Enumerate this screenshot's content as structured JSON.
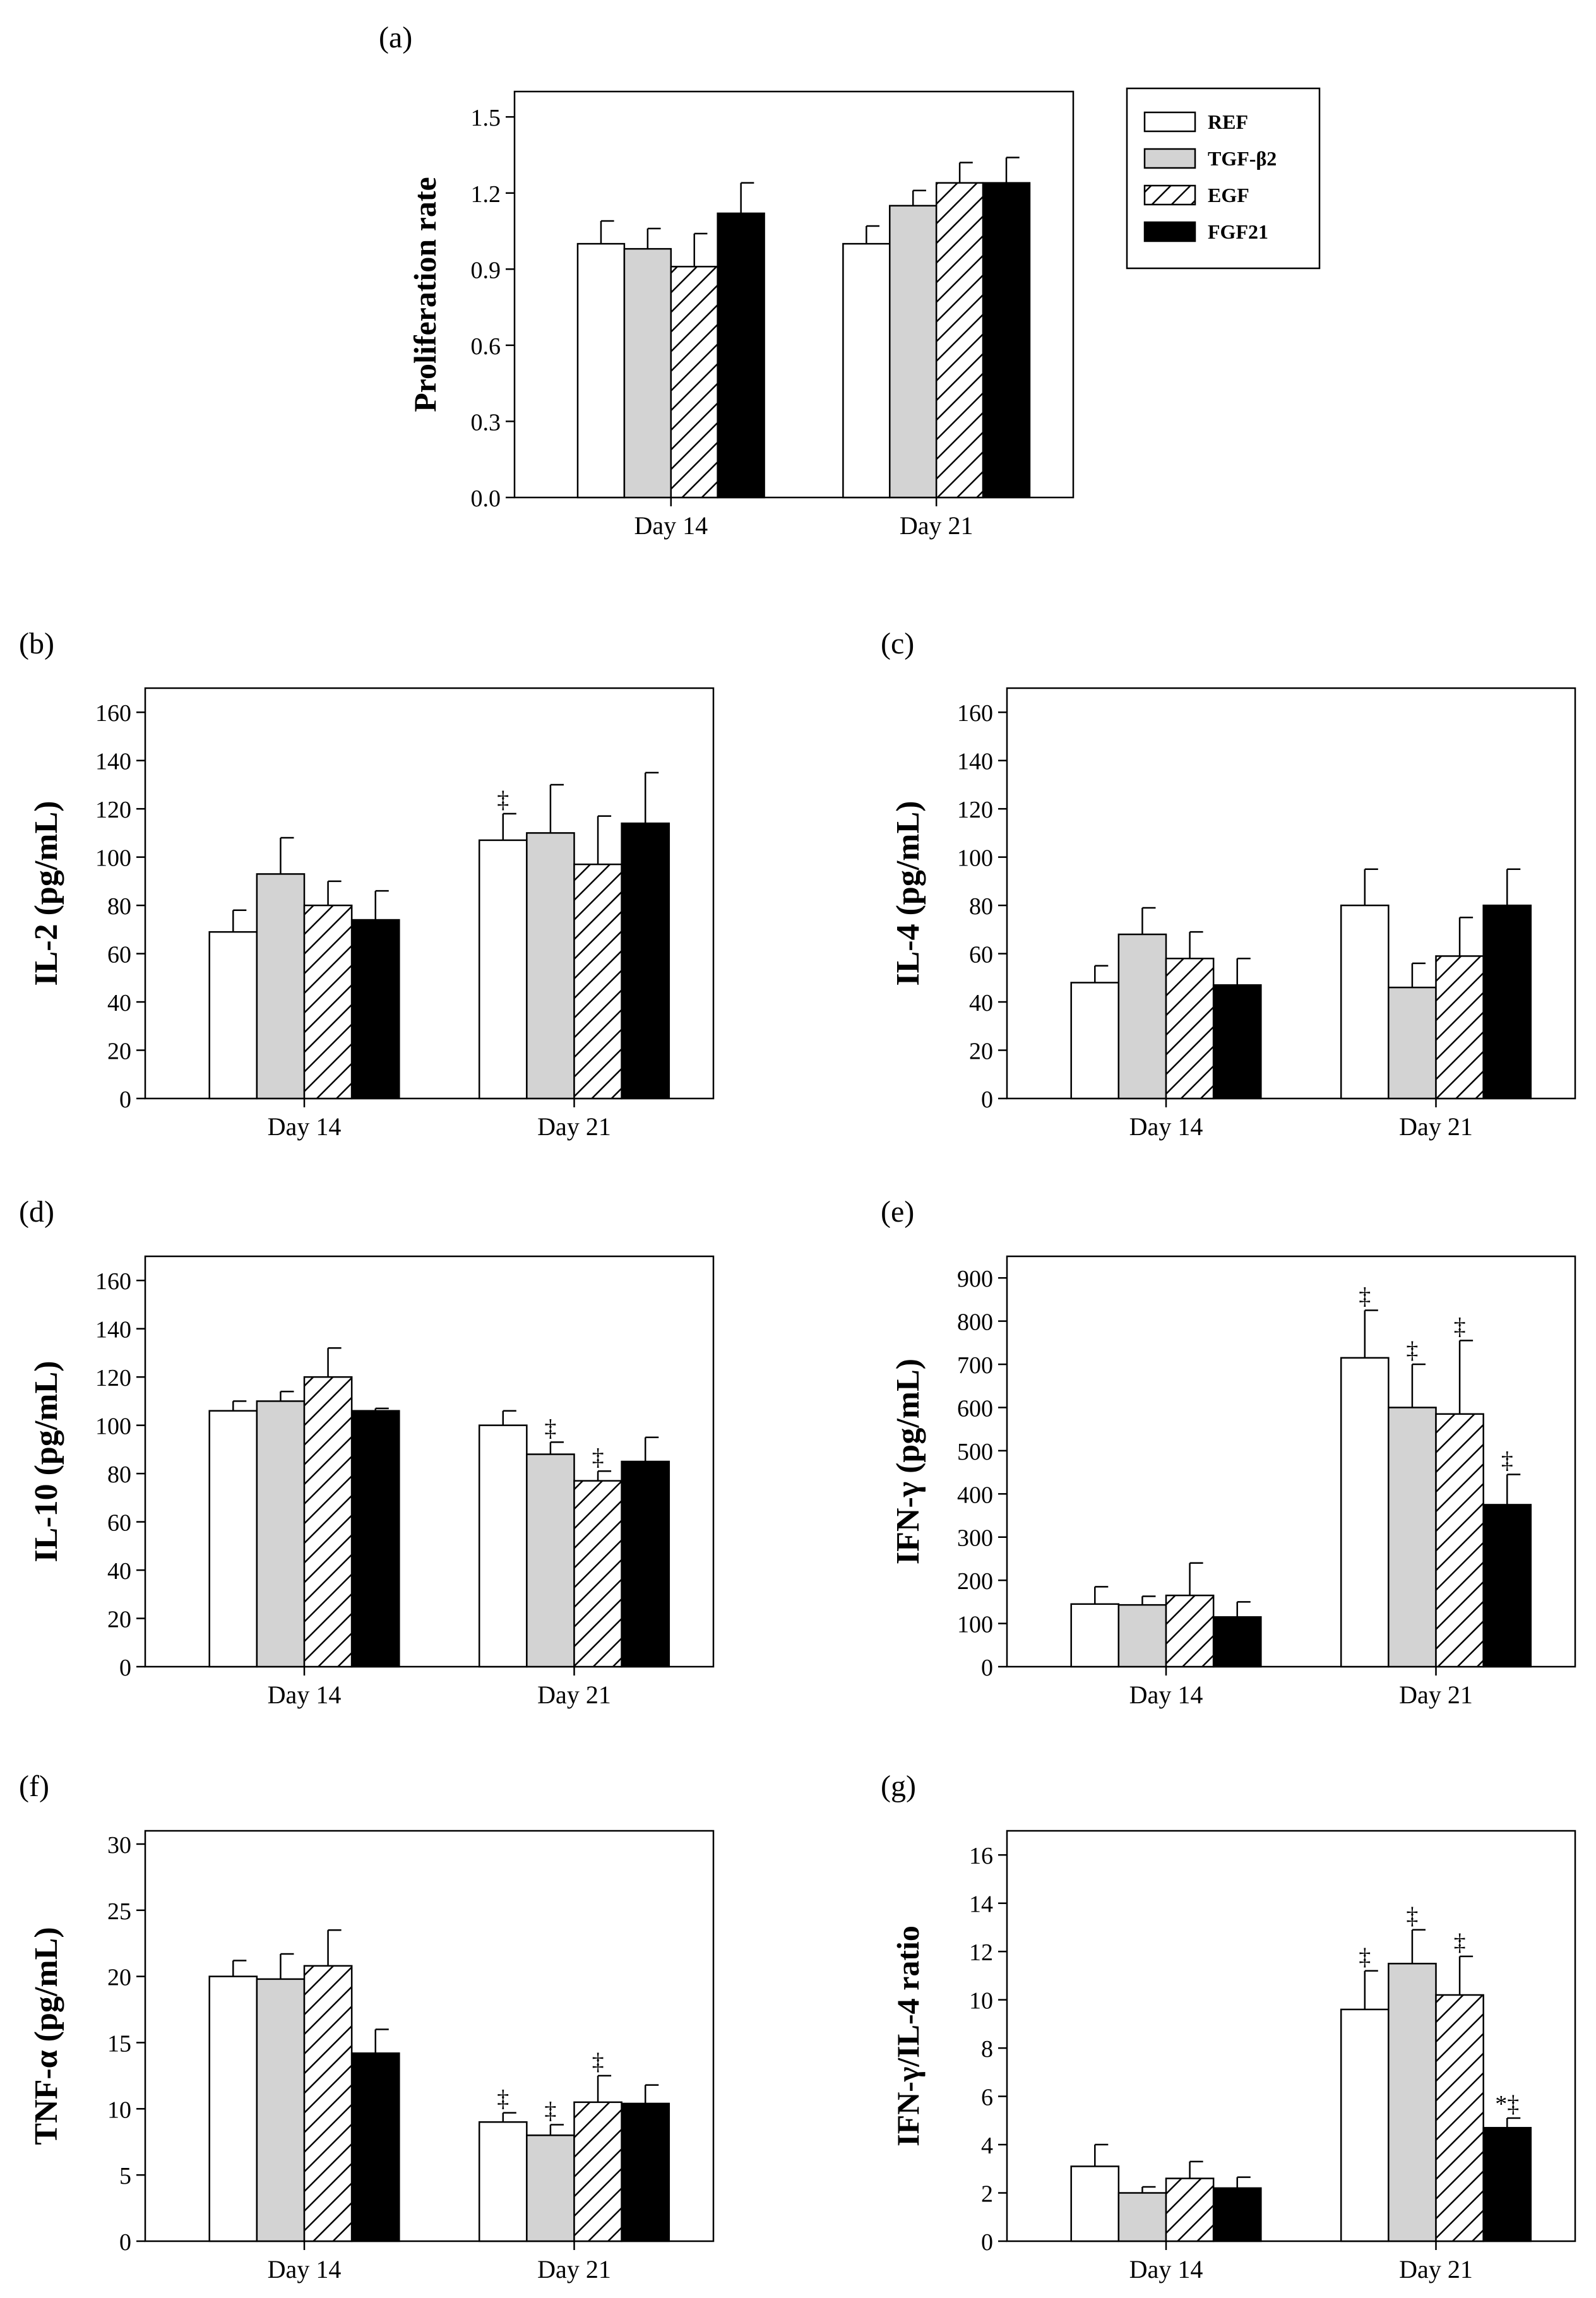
{
  "chart_data": [
    {
      "id": "a",
      "panel_label": "(a)",
      "type": "bar",
      "title": "",
      "ylabel": "Proliferation rate",
      "ylabel_weight": "bold",
      "categories": [
        "Day 14",
        "Day 21"
      ],
      "ylim": [
        0,
        1.6
      ],
      "yticks": [
        0,
        0.3,
        0.6,
        0.9,
        1.2,
        1.5
      ],
      "ytick_labels": [
        "0.0",
        "0.3",
        "0.6",
        "0.9",
        "1.2",
        "1.5"
      ],
      "series": [
        {
          "name": "REF",
          "values": [
            1.0,
            1.0
          ],
          "errors": [
            0.09,
            0.07
          ],
          "marks": [
            "",
            ""
          ]
        },
        {
          "name": "TGF-β2",
          "values": [
            0.98,
            1.15
          ],
          "errors": [
            0.08,
            0.06
          ],
          "marks": [
            "",
            ""
          ]
        },
        {
          "name": "EGF",
          "values": [
            0.91,
            1.24
          ],
          "errors": [
            0.13,
            0.08
          ],
          "marks": [
            "",
            ""
          ]
        },
        {
          "name": "FGF21",
          "values": [
            1.12,
            1.24
          ],
          "errors": [
            0.12,
            0.1
          ],
          "marks": [
            "",
            ""
          ]
        }
      ]
    },
    {
      "id": "b",
      "panel_label": "(b)",
      "type": "bar",
      "title": "",
      "ylabel": "IL-2 (pg/mL)",
      "ylabel_weight": "mixed",
      "categories": [
        "Day 14",
        "Day 21"
      ],
      "ylim": [
        0,
        170
      ],
      "yticks": [
        0,
        20,
        40,
        60,
        80,
        100,
        120,
        140,
        160
      ],
      "ytick_labels": [
        "0",
        "20",
        "40",
        "60",
        "80",
        "100",
        "120",
        "140",
        "160"
      ],
      "series": [
        {
          "name": "REF",
          "values": [
            69,
            107
          ],
          "errors": [
            9,
            11
          ],
          "marks": [
            "",
            "‡"
          ]
        },
        {
          "name": "TGF-β2",
          "values": [
            93,
            110
          ],
          "errors": [
            15,
            20
          ],
          "marks": [
            "",
            ""
          ]
        },
        {
          "name": "EGF",
          "values": [
            80,
            97
          ],
          "errors": [
            10,
            20
          ],
          "marks": [
            "",
            ""
          ]
        },
        {
          "name": "FGF21",
          "values": [
            74,
            114
          ],
          "errors": [
            12,
            21
          ],
          "marks": [
            "",
            ""
          ]
        }
      ]
    },
    {
      "id": "c",
      "panel_label": "(c)",
      "type": "bar",
      "title": "",
      "ylabel": "IL-4 (pg/mL)",
      "ylabel_weight": "mixed",
      "categories": [
        "Day 14",
        "Day 21"
      ],
      "ylim": [
        0,
        170
      ],
      "yticks": [
        0,
        20,
        40,
        60,
        80,
        100,
        120,
        140,
        160
      ],
      "ytick_labels": [
        "0",
        "20",
        "40",
        "60",
        "80",
        "100",
        "120",
        "140",
        "160"
      ],
      "series": [
        {
          "name": "REF",
          "values": [
            48,
            80
          ],
          "errors": [
            7,
            15
          ],
          "marks": [
            "",
            ""
          ]
        },
        {
          "name": "TGF-β2",
          "values": [
            68,
            46
          ],
          "errors": [
            11,
            10
          ],
          "marks": [
            "",
            ""
          ]
        },
        {
          "name": "EGF",
          "values": [
            58,
            59
          ],
          "errors": [
            11,
            16
          ],
          "marks": [
            "",
            ""
          ]
        },
        {
          "name": "FGF21",
          "values": [
            47,
            80
          ],
          "errors": [
            11,
            15
          ],
          "marks": [
            "",
            ""
          ]
        }
      ]
    },
    {
      "id": "d",
      "panel_label": "(d)",
      "type": "bar",
      "title": "",
      "ylabel": "IL-10 (pg/mL)",
      "ylabel_weight": "mixed",
      "categories": [
        "Day 14",
        "Day 21"
      ],
      "ylim": [
        0,
        170
      ],
      "yticks": [
        0,
        20,
        40,
        60,
        80,
        100,
        120,
        140,
        160
      ],
      "ytick_labels": [
        "0",
        "20",
        "40",
        "60",
        "80",
        "100",
        "120",
        "140",
        "160"
      ],
      "series": [
        {
          "name": "REF",
          "values": [
            106,
            100
          ],
          "errors": [
            4,
            6
          ],
          "marks": [
            "",
            ""
          ]
        },
        {
          "name": "TGF-β2",
          "values": [
            110,
            88
          ],
          "errors": [
            4,
            5
          ],
          "marks": [
            "",
            "‡"
          ]
        },
        {
          "name": "EGF",
          "values": [
            120,
            77
          ],
          "errors": [
            12,
            4
          ],
          "marks": [
            "",
            "‡"
          ]
        },
        {
          "name": "FGF21",
          "values": [
            106,
            85
          ],
          "errors": [
            1,
            10
          ],
          "marks": [
            "",
            ""
          ]
        }
      ]
    },
    {
      "id": "e",
      "panel_label": "(e)",
      "type": "bar",
      "title": "",
      "ylabel": "IFN-γ (pg/mL)",
      "ylabel_weight": "mixed",
      "categories": [
        "Day 14",
        "Day 21"
      ],
      "ylim": [
        0,
        950
      ],
      "yticks": [
        0,
        100,
        200,
        300,
        400,
        500,
        600,
        700,
        800,
        900
      ],
      "ytick_labels": [
        "0",
        "100",
        "200",
        "300",
        "400",
        "500",
        "600",
        "700",
        "800",
        "900"
      ],
      "series": [
        {
          "name": "REF",
          "values": [
            145,
            715
          ],
          "errors": [
            40,
            110
          ],
          "marks": [
            "",
            "‡"
          ]
        },
        {
          "name": "TGF-β2",
          "values": [
            143,
            600
          ],
          "errors": [
            20,
            100
          ],
          "marks": [
            "",
            "‡"
          ]
        },
        {
          "name": "EGF",
          "values": [
            165,
            585
          ],
          "errors": [
            75,
            170
          ],
          "marks": [
            "",
            "‡"
          ]
        },
        {
          "name": "FGF21",
          "values": [
            115,
            375
          ],
          "errors": [
            35,
            70
          ],
          "marks": [
            "",
            "‡"
          ]
        }
      ]
    },
    {
      "id": "f",
      "panel_label": "(f)",
      "type": "bar",
      "title": "",
      "ylabel": "TNF-α (pg/mL)",
      "ylabel_weight": "mixed",
      "categories": [
        "Day 14",
        "Day 21"
      ],
      "ylim": [
        0,
        31
      ],
      "yticks": [
        0,
        5,
        10,
        15,
        20,
        25,
        30
      ],
      "ytick_labels": [
        "0",
        "5",
        "10",
        "15",
        "20",
        "25",
        "30"
      ],
      "series": [
        {
          "name": "REF",
          "values": [
            20,
            9
          ],
          "errors": [
            1.2,
            0.7
          ],
          "marks": [
            "",
            "‡"
          ]
        },
        {
          "name": "TGF-β2",
          "values": [
            19.8,
            8
          ],
          "errors": [
            1.9,
            0.8
          ],
          "marks": [
            "",
            "‡"
          ]
        },
        {
          "name": "EGF",
          "values": [
            20.8,
            10.5
          ],
          "errors": [
            2.7,
            2
          ],
          "marks": [
            "",
            "‡"
          ]
        },
        {
          "name": "FGF21",
          "values": [
            14.2,
            10.4
          ],
          "errors": [
            1.8,
            1.4
          ],
          "marks": [
            "",
            ""
          ]
        }
      ]
    },
    {
      "id": "g",
      "panel_label": "(g)",
      "type": "bar",
      "title": "",
      "ylabel": "IFN-γ/IL-4 ratio",
      "ylabel_weight": "bold",
      "categories": [
        "Day 14",
        "Day 21"
      ],
      "ylim": [
        0,
        17
      ],
      "yticks": [
        0,
        2,
        4,
        6,
        8,
        10,
        12,
        14,
        16
      ],
      "ytick_labels": [
        "0",
        "2",
        "4",
        "6",
        "8",
        "10",
        "12",
        "14",
        "16"
      ],
      "series": [
        {
          "name": "REF",
          "values": [
            3.1,
            9.6
          ],
          "errors": [
            0.9,
            1.6
          ],
          "marks": [
            "",
            "‡"
          ]
        },
        {
          "name": "TGF-β2",
          "values": [
            2.0,
            11.5
          ],
          "errors": [
            0.25,
            1.4
          ],
          "marks": [
            "",
            "‡"
          ]
        },
        {
          "name": "EGF",
          "values": [
            2.6,
            10.2
          ],
          "errors": [
            0.7,
            1.6
          ],
          "marks": [
            "",
            "‡"
          ]
        },
        {
          "name": "FGF21",
          "values": [
            2.2,
            4.7
          ],
          "errors": [
            0.45,
            0.4
          ],
          "marks": [
            "",
            "*‡"
          ]
        }
      ]
    }
  ],
  "legend": {
    "placement": "right of panel (a)",
    "entries": [
      {
        "label": "REF",
        "fill": "white"
      },
      {
        "label": "TGF-β2",
        "fill": "light-gray"
      },
      {
        "label": "EGF",
        "fill": "diagonal-hatch"
      },
      {
        "label": "FGF21",
        "fill": "black"
      }
    ]
  },
  "colors": {
    "REF": "#ffffff",
    "TGF-β2": "#d3d3d3",
    "EGF": "hatch",
    "FGF21": "#000000",
    "axis": "#000000"
  }
}
